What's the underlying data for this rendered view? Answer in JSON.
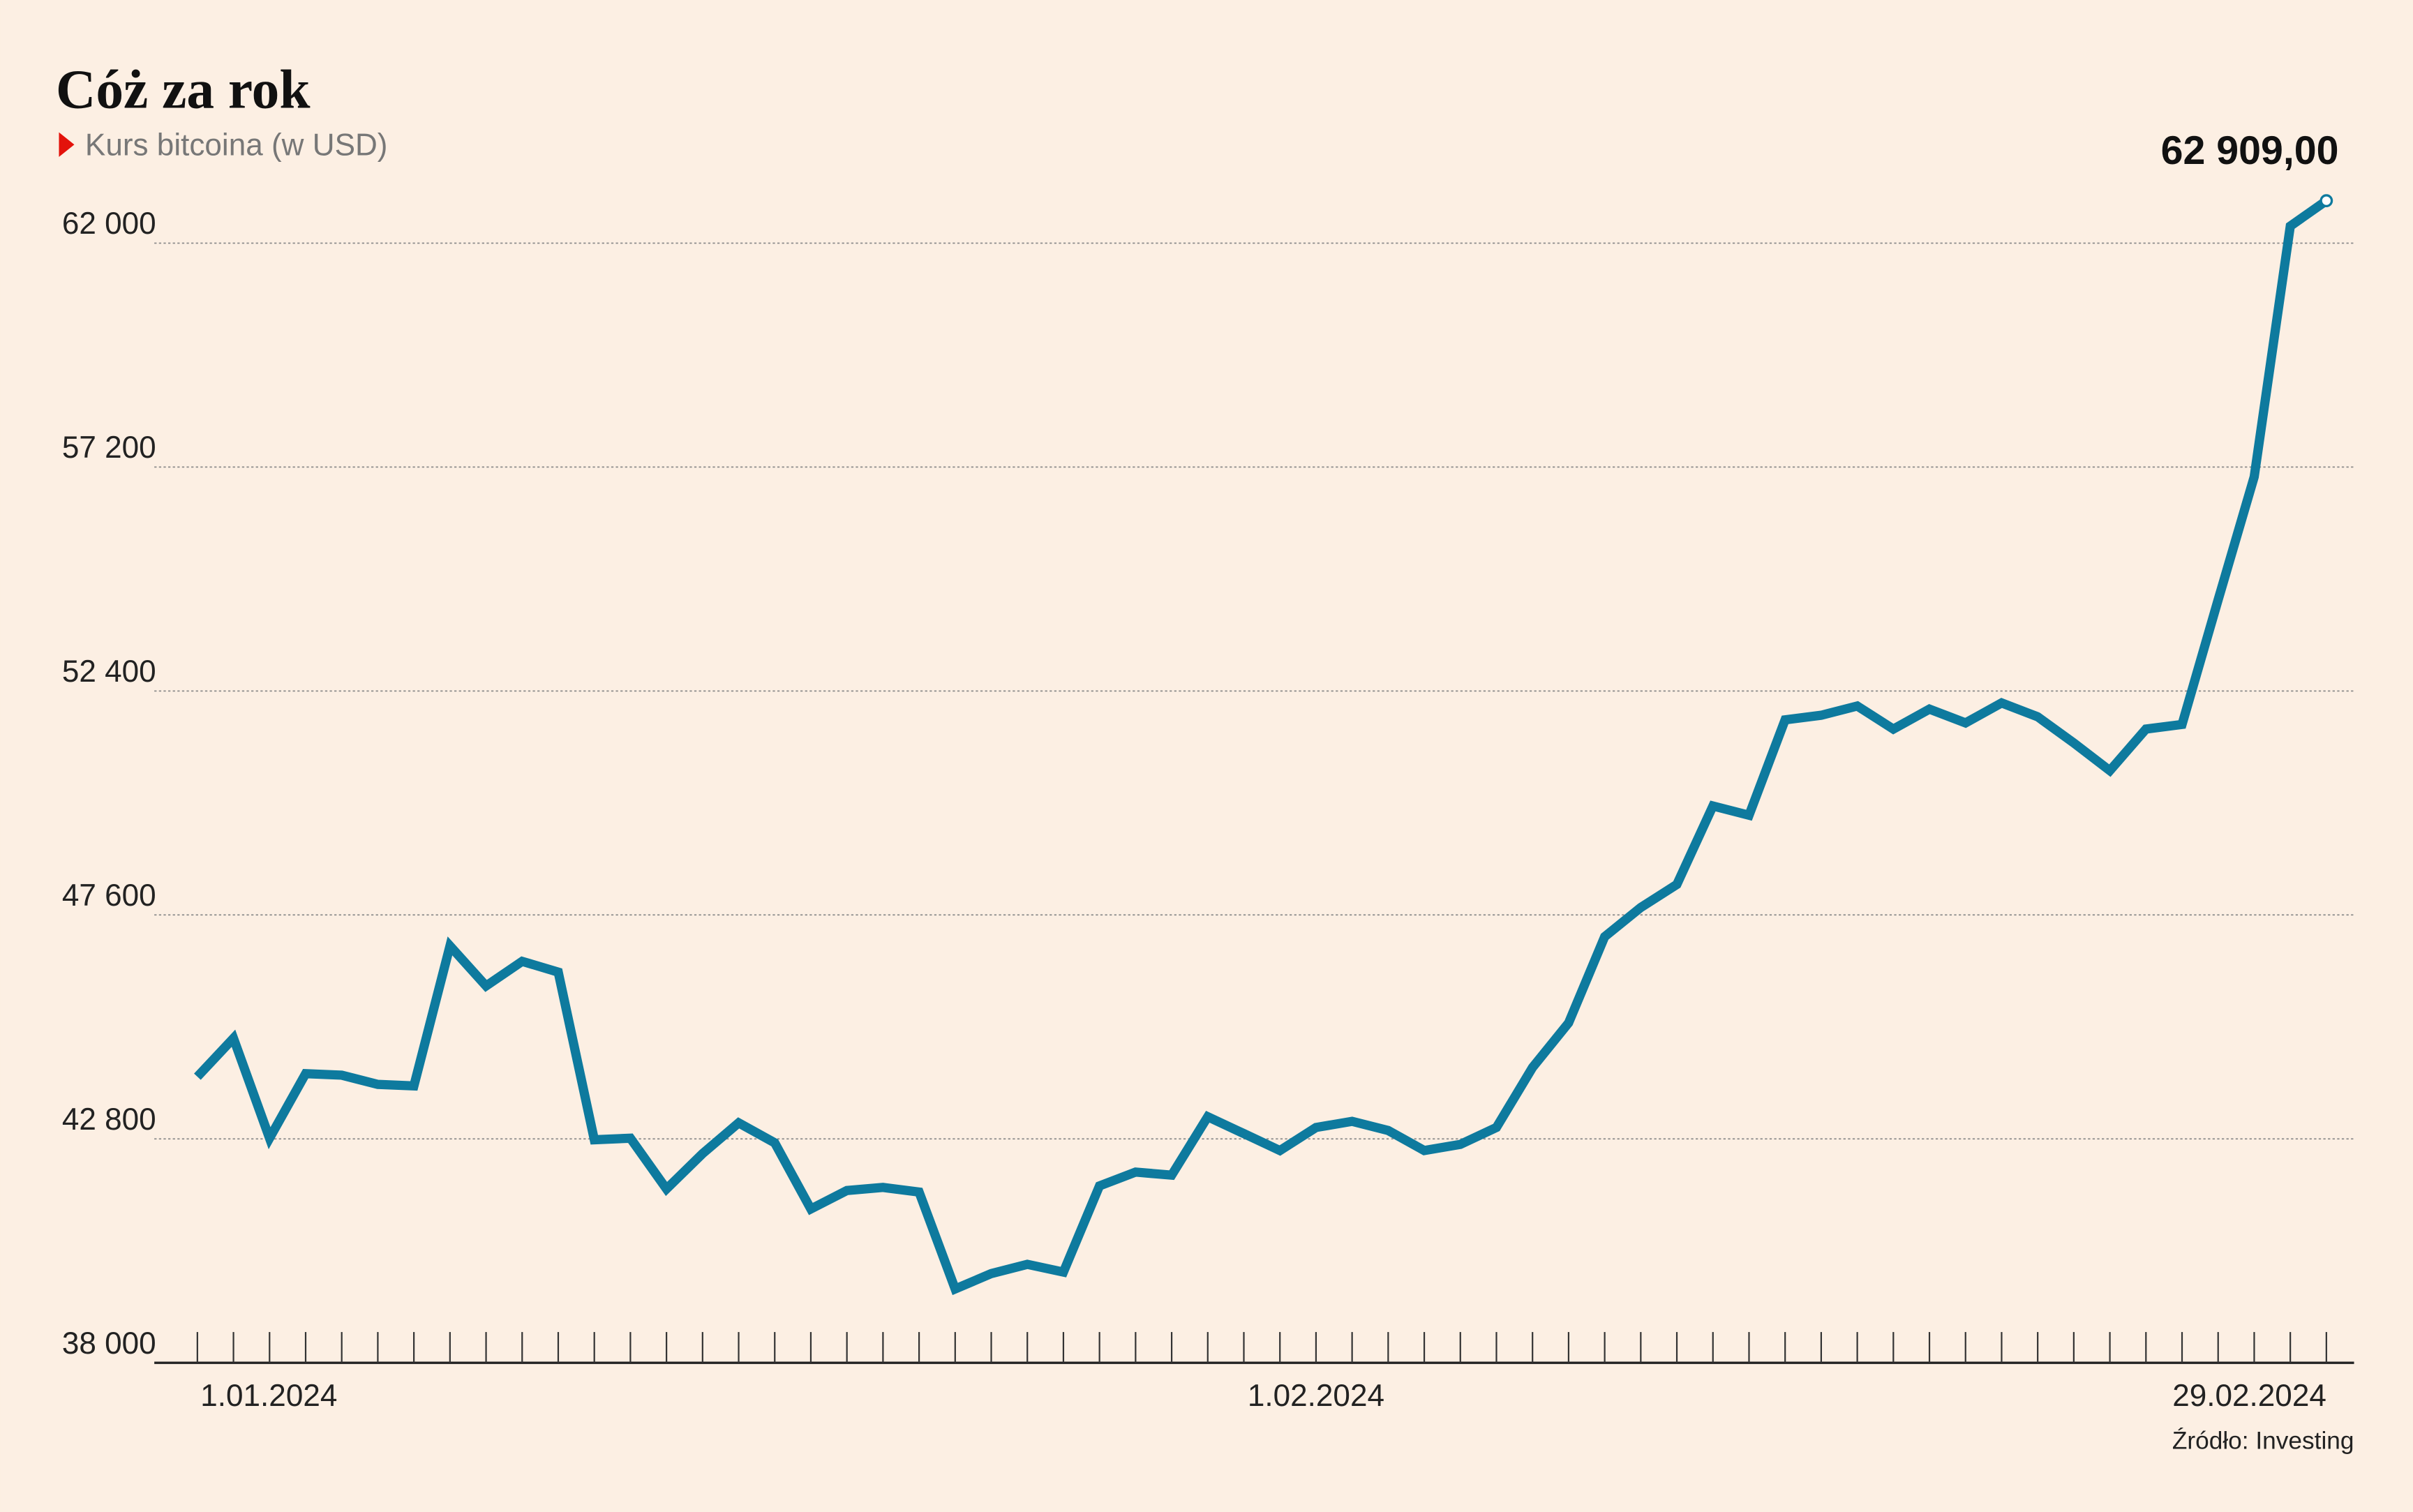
{
  "chart_data": {
    "type": "line",
    "title": "Cóż za rok",
    "subtitle": "Kurs bitcoina (w USD)",
    "source": "Źródło: Investing",
    "categories": [
      "1.01.2024",
      null,
      null,
      null,
      null,
      null,
      null,
      null,
      null,
      null,
      null,
      null,
      null,
      null,
      null,
      null,
      null,
      null,
      null,
      null,
      null,
      null,
      null,
      null,
      null,
      null,
      null,
      null,
      null,
      null,
      null,
      "1.02.2024",
      null,
      null,
      null,
      null,
      null,
      null,
      null,
      null,
      null,
      null,
      null,
      null,
      null,
      null,
      null,
      null,
      null,
      null,
      null,
      null,
      null,
      null,
      null,
      null,
      null,
      null,
      null,
      "29.02.2024"
    ],
    "series": [
      {
        "name": "Kurs bitcoina (w USD)",
        "color": "#0e7a9e",
        "values": [
          44132,
          44957,
          42814,
          44198,
          44165,
          43968,
          43935,
          46935,
          46078,
          46605,
          46374,
          42781,
          42814,
          41726,
          42484,
          43143,
          42715,
          41297,
          41693,
          41759,
          41660,
          39583,
          39912,
          40110,
          39945,
          41792,
          42088,
          42022,
          43275,
          42913,
          42550,
          43044,
          43176,
          42979,
          42550,
          42682,
          43044,
          44330,
          45286,
          47133,
          47759,
          48253,
          49935,
          49737,
          51782,
          51880,
          52078,
          51584,
          52012,
          51716,
          52144,
          51847,
          51287,
          50693,
          51584,
          51683,
          54353,
          56991,
          62365,
          62909
        ],
        "value_labels": [
          null,
          null,
          null,
          null,
          null,
          null,
          null,
          null,
          null,
          null,
          null,
          null,
          null,
          null,
          null,
          null,
          null,
          null,
          null,
          null,
          null,
          null,
          null,
          null,
          null,
          null,
          null,
          null,
          null,
          null,
          null,
          null,
          null,
          null,
          null,
          null,
          null,
          null,
          null,
          null,
          null,
          null,
          null,
          null,
          null,
          null,
          null,
          null,
          null,
          null,
          null,
          null,
          null,
          null,
          null,
          null,
          null,
          null,
          null,
          "62 909,00"
        ]
      }
    ],
    "ylim": [
      38000,
      63000
    ],
    "yticks": [
      {
        "value": 38000,
        "label": "38 000"
      },
      {
        "value": 42800,
        "label": "42 800"
      },
      {
        "value": 47600,
        "label": "47 600"
      },
      {
        "value": 52400,
        "label": "52 400"
      },
      {
        "value": 57200,
        "label": "57 200"
      },
      {
        "value": 62000,
        "label": "62 000"
      }
    ],
    "grid": true
  }
}
